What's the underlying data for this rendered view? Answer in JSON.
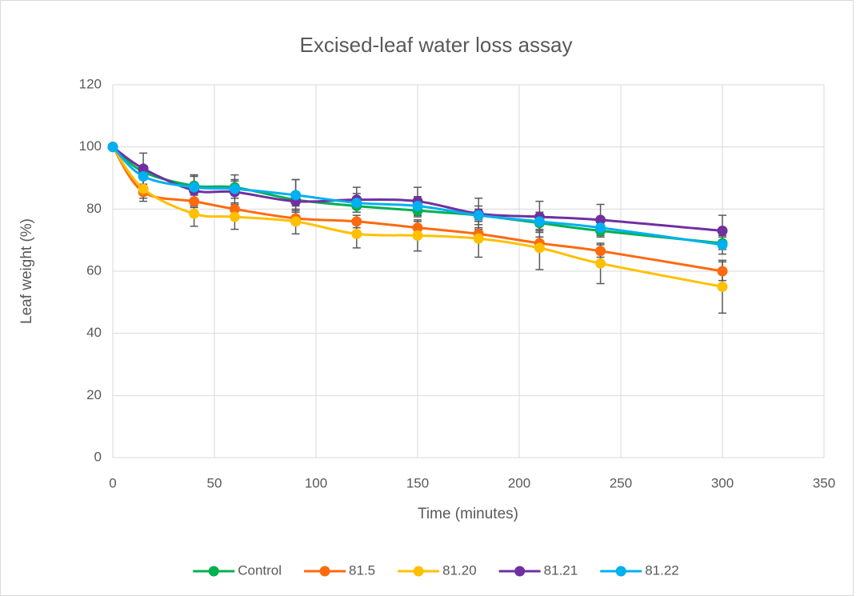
{
  "chart_data": {
    "type": "line",
    "title": "Excised-leaf water loss assay",
    "x_label": "Time (minutes)",
    "y_label": "Leaf weight (%)",
    "x": [
      0,
      15,
      40,
      60,
      90,
      120,
      150,
      180,
      210,
      240,
      300
    ],
    "series": [
      {
        "name": "Control",
        "color": "#00b050",
        "values": [
          100,
          92,
          87.5,
          87,
          83,
          81,
          79.5,
          78,
          75.5,
          73,
          69
        ],
        "errors": [
          0,
          2,
          3,
          2,
          2,
          2,
          2,
          2,
          2,
          2,
          2
        ]
      },
      {
        "name": "81.5",
        "color": "#fd6a0f",
        "values": [
          100,
          85.5,
          82.5,
          80,
          77,
          76,
          74,
          72,
          69,
          66.5,
          60
        ],
        "errors": [
          0,
          2,
          2,
          2,
          2,
          2,
          2,
          2,
          2,
          2,
          3
        ]
      },
      {
        "name": "81.20",
        "color": "#ffc000",
        "values": [
          100,
          86.5,
          78.5,
          77.5,
          76,
          72,
          71.5,
          70.5,
          67.5,
          62.5,
          55
        ],
        "errors": [
          0,
          4,
          4,
          4,
          4,
          4.5,
          5,
          6,
          7,
          6.5,
          8.5
        ]
      },
      {
        "name": "81.21",
        "color": "#7030a0",
        "values": [
          100,
          93,
          86,
          85.5,
          82.5,
          83,
          82.5,
          78.5,
          77.5,
          76.5,
          73
        ],
        "errors": [
          0,
          5,
          5,
          5.5,
          7,
          4,
          4.5,
          5,
          5,
          5,
          5
        ]
      },
      {
        "name": "81.22",
        "color": "#00b0f0",
        "values": [
          100,
          90.5,
          87,
          86.5,
          84.5,
          82,
          81,
          78,
          76,
          74,
          68.5
        ],
        "errors": [
          0,
          3,
          4,
          3,
          5,
          3,
          3,
          3,
          3,
          3,
          3
        ]
      }
    ],
    "xlim": [
      0,
      350
    ],
    "xticks": [
      0,
      50,
      100,
      150,
      200,
      250,
      300,
      350
    ],
    "ylim": [
      0,
      120
    ],
    "yticks": [
      0,
      20,
      40,
      60,
      80,
      100,
      120
    ],
    "grid": true,
    "smooth": true,
    "legend": "bottom"
  }
}
